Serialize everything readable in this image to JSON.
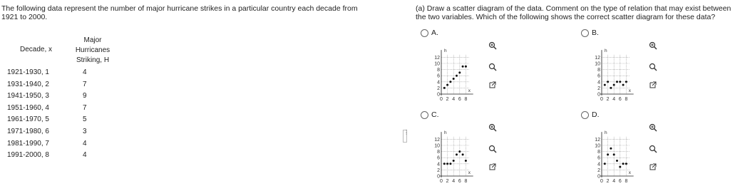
{
  "problem": {
    "intro": "The following data represent the number of major hurricane strikes in a particular country each decade from 1921 to 2000.",
    "question": "(a) Draw a scatter diagram of the data. Comment on the type of relation that may exist between the two variables. Which of the following shows the correct scatter diagram for these data?"
  },
  "table": {
    "headers": [
      "Decade, x",
      "Major Hurricanes Striking, H"
    ],
    "rows": [
      [
        "1921-1930, 1",
        "4"
      ],
      [
        "1931-1940, 2",
        "7"
      ],
      [
        "1941-1950, 3",
        "9"
      ],
      [
        "1951-1960, 4",
        "7"
      ],
      [
        "1961-1970, 5",
        "5"
      ],
      [
        "1971-1980, 6",
        "3"
      ],
      [
        "1981-1990, 7",
        "4"
      ],
      [
        "1991-2000, 8",
        "4"
      ]
    ]
  },
  "axes": {
    "xlabel": "x",
    "ylabel": "h",
    "xlim": [
      0,
      9
    ],
    "ylim": [
      0,
      13
    ],
    "xticks": [
      0,
      2,
      4,
      6,
      8
    ],
    "yticks": [
      0,
      2,
      4,
      6,
      8,
      10,
      12
    ]
  },
  "options": [
    {
      "label": "A.",
      "points": [
        [
          1,
          2
        ],
        [
          2,
          3
        ],
        [
          3,
          4
        ],
        [
          4,
          5
        ],
        [
          5,
          6
        ],
        [
          6,
          7
        ],
        [
          7,
          9
        ],
        [
          8,
          9
        ]
      ]
    },
    {
      "label": "B.",
      "points": [
        [
          1,
          3
        ],
        [
          2,
          4
        ],
        [
          3,
          2
        ],
        [
          4,
          3
        ],
        [
          5,
          4
        ],
        [
          6,
          4
        ],
        [
          7,
          3
        ],
        [
          8,
          4
        ]
      ]
    },
    {
      "label": "C.",
      "points": [
        [
          1,
          4
        ],
        [
          2,
          4
        ],
        [
          3,
          4
        ],
        [
          4,
          5
        ],
        [
          5,
          7
        ],
        [
          6,
          8
        ],
        [
          7,
          7
        ],
        [
          8,
          5
        ]
      ]
    },
    {
      "label": "D.",
      "points": [
        [
          1,
          4
        ],
        [
          2,
          7
        ],
        [
          3,
          9
        ],
        [
          4,
          7
        ],
        [
          5,
          5
        ],
        [
          6,
          3
        ],
        [
          7,
          4
        ],
        [
          8,
          4
        ]
      ]
    }
  ]
}
